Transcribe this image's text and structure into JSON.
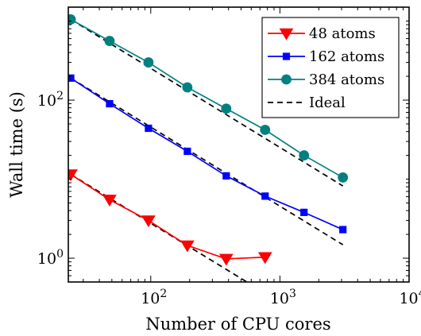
{
  "chart_data": {
    "type": "line",
    "xscale": "log",
    "yscale": "log",
    "xlim": [
      23,
      10000
    ],
    "ylim": [
      0.5,
      1500
    ],
    "xlabel": "Number of CPU cores",
    "ylabel": "Wall time (s)",
    "x_ticks": [
      {
        "value": 100,
        "base": "10",
        "exp": "2"
      },
      {
        "value": 1000,
        "base": "10",
        "exp": "3"
      },
      {
        "value": 10000,
        "base": "10",
        "exp": "4"
      }
    ],
    "y_ticks": [
      {
        "value": 1,
        "base": "10",
        "exp": "0"
      },
      {
        "value": 100,
        "base": "10",
        "exp": "2"
      }
    ],
    "grid": false,
    "legend_position": "top-right",
    "series": [
      {
        "name": "48 atoms",
        "color": "#ff0000",
        "marker": "triangle-down",
        "x": [
          24,
          48,
          96,
          192,
          384,
          768
        ],
        "y": [
          11.5,
          5.5,
          3.0,
          1.45,
          0.98,
          1.03
        ]
      },
      {
        "name": "162 atoms",
        "color": "#0000ff",
        "marker": "square",
        "x": [
          24,
          48,
          96,
          192,
          384,
          768,
          1536,
          3072
        ],
        "y": [
          190,
          90,
          44,
          22.5,
          11.0,
          6.1,
          3.8,
          2.3
        ]
      },
      {
        "name": "384 atoms",
        "color": "#008080",
        "marker": "circle",
        "x": [
          24,
          48,
          96,
          192,
          384,
          768,
          1536,
          3072
        ],
        "y": [
          1050,
          560,
          300,
          145,
          78,
          42,
          20,
          10.5
        ]
      }
    ],
    "ideal": {
      "name": "Ideal",
      "color": "#000000",
      "lines": [
        {
          "x": [
            24,
            3072
          ],
          "y": [
            1050,
            8.2
          ]
        },
        {
          "x": [
            24,
            3072
          ],
          "y": [
            190,
            1.48
          ]
        },
        {
          "x": [
            24,
            750
          ],
          "y": [
            11.5,
            0.37
          ]
        }
      ]
    }
  }
}
